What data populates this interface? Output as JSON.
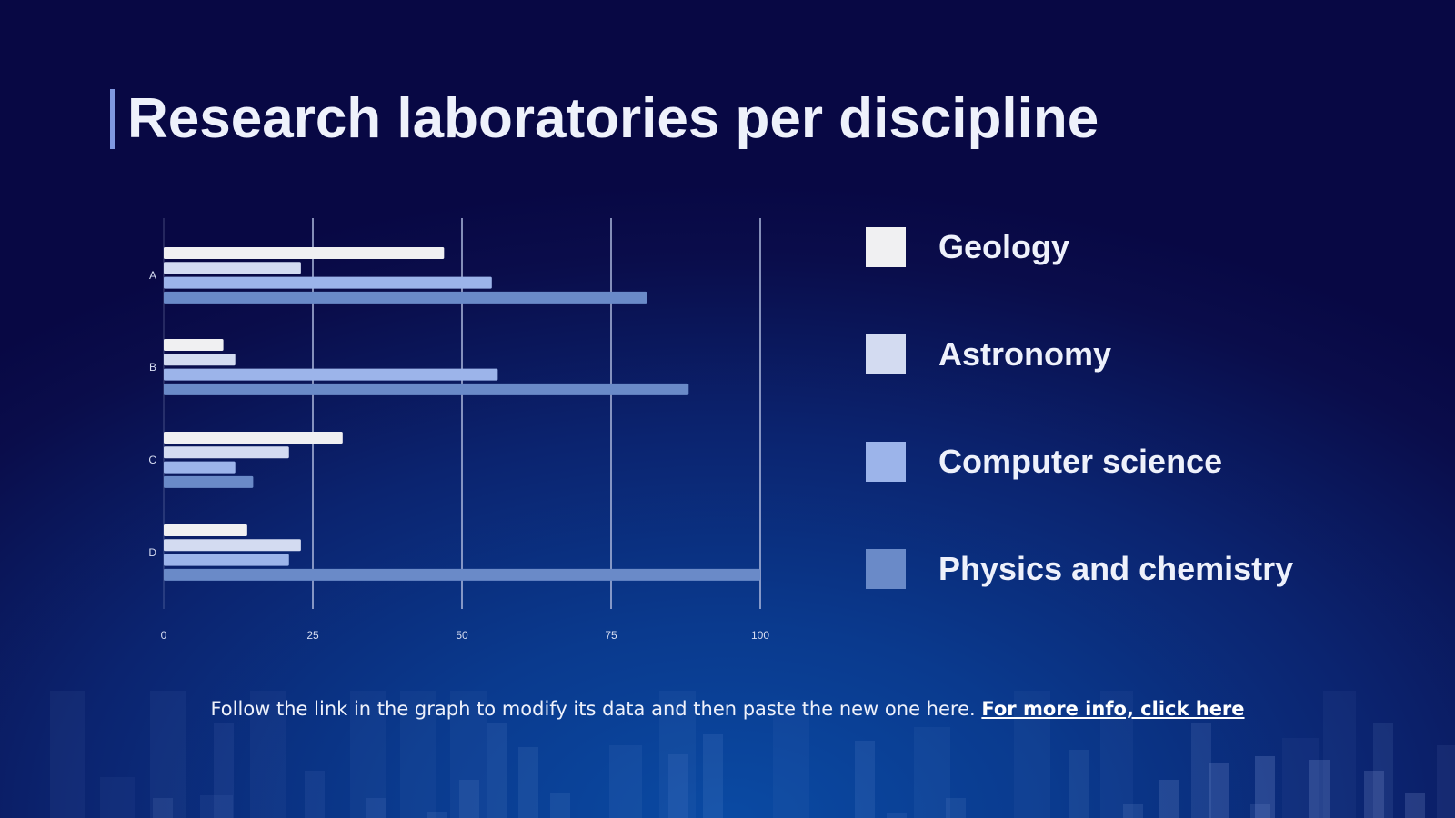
{
  "title": "Research laboratories per discipline",
  "footer": {
    "text": "Follow the link in the graph to modify its data and then paste the new one here.",
    "link_text": "For more info, click here"
  },
  "colors": {
    "background_top": "#080844",
    "background_bottom": "#0a4aa3",
    "text": "#eef1fb",
    "title_accent": "#7f97e0",
    "gridline": "#aeb9dd"
  },
  "chart_data": {
    "type": "bar",
    "orientation": "horizontal",
    "categories": [
      "A",
      "B",
      "C",
      "D"
    ],
    "series": [
      {
        "name": "Geology",
        "color": "#f0f0f2",
        "values": [
          47,
          10,
          30,
          14
        ]
      },
      {
        "name": "Astronomy",
        "color": "#d3dbf1",
        "values": [
          23,
          12,
          21,
          23
        ]
      },
      {
        "name": "Computer science",
        "color": "#9cb4ea",
        "values": [
          55,
          56,
          12,
          21
        ]
      },
      {
        "name": "Physics and chemistry",
        "color": "#6a8ac8",
        "values": [
          81,
          88,
          15,
          100
        ]
      }
    ],
    "xlim": [
      0,
      100
    ],
    "xticks": [
      "0",
      "25",
      "50",
      "75",
      "100"
    ],
    "grid": true,
    "legend_position": "right",
    "xlabel": "",
    "ylabel": ""
  }
}
